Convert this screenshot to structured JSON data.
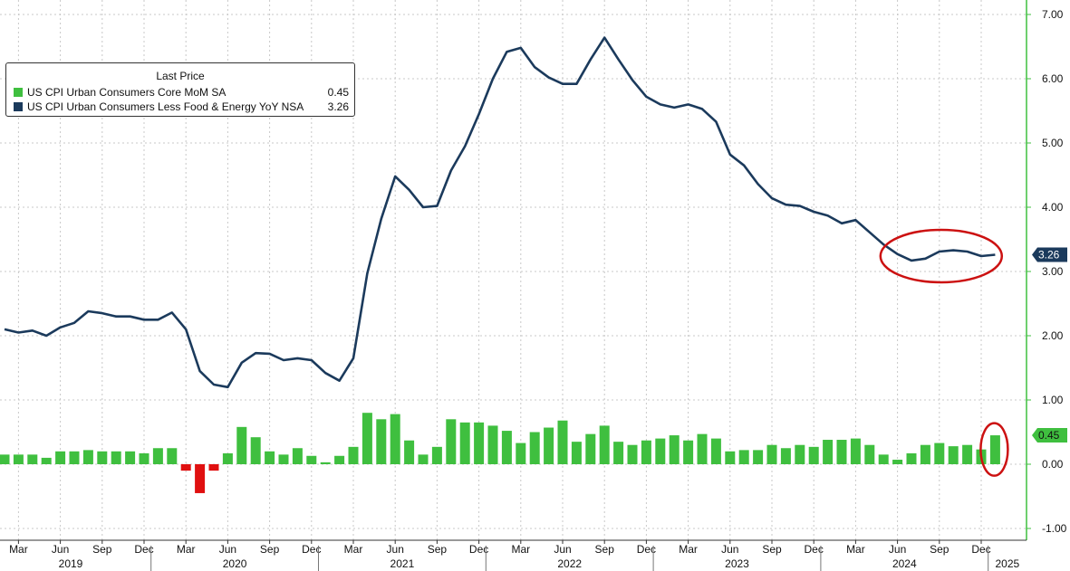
{
  "legend": {
    "title": "Last Price",
    "items": [
      {
        "label": "US CPI Urban Consumers Core MoM SA",
        "value": "0.45",
        "color": "#3fbf3f"
      },
      {
        "label": "US CPI Urban Consumers Less Food & Energy YoY NSA",
        "value": "3.26",
        "color": "#1b3a5c"
      }
    ]
  },
  "chart_data": {
    "type": "bar+line",
    "x": [
      "2019-02",
      "2019-03",
      "2019-04",
      "2019-05",
      "2019-06",
      "2019-07",
      "2019-08",
      "2019-09",
      "2019-10",
      "2019-11",
      "2019-12",
      "2020-01",
      "2020-02",
      "2020-03",
      "2020-04",
      "2020-05",
      "2020-06",
      "2020-07",
      "2020-08",
      "2020-09",
      "2020-10",
      "2020-11",
      "2020-12",
      "2021-01",
      "2021-02",
      "2021-03",
      "2021-04",
      "2021-05",
      "2021-06",
      "2021-07",
      "2021-08",
      "2021-09",
      "2021-10",
      "2021-11",
      "2021-12",
      "2022-01",
      "2022-02",
      "2022-03",
      "2022-04",
      "2022-05",
      "2022-06",
      "2022-07",
      "2022-08",
      "2022-09",
      "2022-10",
      "2022-11",
      "2022-12",
      "2023-01",
      "2023-02",
      "2023-03",
      "2023-04",
      "2023-05",
      "2023-06",
      "2023-07",
      "2023-08",
      "2023-09",
      "2023-10",
      "2023-11",
      "2023-12",
      "2024-01",
      "2024-02",
      "2024-03",
      "2024-04",
      "2024-05",
      "2024-06",
      "2024-07",
      "2024-08",
      "2024-09",
      "2024-10",
      "2024-11",
      "2024-12",
      "2025-01"
    ],
    "series": [
      {
        "name": "US CPI Urban Consumers Core MoM SA",
        "type": "bar",
        "color": "#3fbf3f",
        "negative_color": "#e01010",
        "values": [
          0.15,
          0.15,
          0.15,
          0.1,
          0.2,
          0.2,
          0.22,
          0.2,
          0.2,
          0.2,
          0.17,
          0.25,
          0.25,
          -0.1,
          -0.45,
          -0.1,
          0.17,
          0.58,
          0.42,
          0.2,
          0.15,
          0.25,
          0.13,
          0.03,
          0.13,
          0.27,
          0.8,
          0.7,
          0.78,
          0.37,
          0.15,
          0.27,
          0.7,
          0.65,
          0.65,
          0.6,
          0.52,
          0.33,
          0.5,
          0.57,
          0.68,
          0.35,
          0.47,
          0.6,
          0.35,
          0.3,
          0.37,
          0.4,
          0.45,
          0.37,
          0.47,
          0.4,
          0.2,
          0.22,
          0.22,
          0.3,
          0.25,
          0.3,
          0.27,
          0.38,
          0.38,
          0.4,
          0.3,
          0.15,
          0.07,
          0.17,
          0.3,
          0.33,
          0.28,
          0.3,
          0.23,
          0.45
        ]
      },
      {
        "name": "US CPI Urban Consumers Less Food & Energy YoY NSA",
        "type": "line",
        "color": "#1b3a5c",
        "values": [
          2.1,
          2.05,
          2.08,
          2.0,
          2.13,
          2.2,
          2.38,
          2.35,
          2.3,
          2.3,
          2.25,
          2.25,
          2.36,
          2.1,
          1.45,
          1.24,
          1.2,
          1.58,
          1.73,
          1.72,
          1.62,
          1.65,
          1.62,
          1.42,
          1.3,
          1.65,
          2.97,
          3.82,
          4.48,
          4.27,
          4.0,
          4.02,
          4.57,
          4.95,
          5.45,
          6.0,
          6.42,
          6.48,
          6.18,
          6.02,
          5.92,
          5.92,
          6.3,
          6.64,
          6.3,
          5.98,
          5.72,
          5.6,
          5.55,
          5.6,
          5.53,
          5.33,
          4.82,
          4.65,
          4.36,
          4.14,
          4.04,
          4.02,
          3.93,
          3.87,
          3.75,
          3.8,
          3.61,
          3.42,
          3.27,
          3.17,
          3.2,
          3.31,
          3.33,
          3.31,
          3.24,
          3.26
        ]
      }
    ],
    "ylim": [
      -1.2,
      7.2
    ],
    "y_ticks": [
      "7.00",
      "6.00",
      "5.00",
      "4.00",
      "3.00",
      "2.00",
      "1.00",
      "0.00",
      "-1.00"
    ],
    "month_labels": [
      "Mar",
      "Jun",
      "Sep",
      "Dec",
      "Mar",
      "Jun",
      "Sep",
      "Dec",
      "Mar",
      "Jun",
      "Sep",
      "Dec",
      "Mar",
      "Jun",
      "Sep",
      "Dec",
      "Mar",
      "Jun",
      "Sep",
      "Dec",
      "Mar",
      "Jun",
      "Sep",
      "Dec"
    ],
    "year_labels": [
      "2019",
      "2020",
      "2021",
      "2022",
      "2023",
      "2024",
      "2025"
    ],
    "last_value_tags": [
      {
        "text": "3.26",
        "color": "#1b3a5c",
        "text_color": "#ffffff"
      },
      {
        "text": "0.45",
        "color": "#3fbf3f",
        "text_color": "#111111"
      }
    ],
    "annotation_color": "#cc1111",
    "grid": true,
    "axis_color": "#3fbf3f",
    "legend_position": "top-left"
  }
}
